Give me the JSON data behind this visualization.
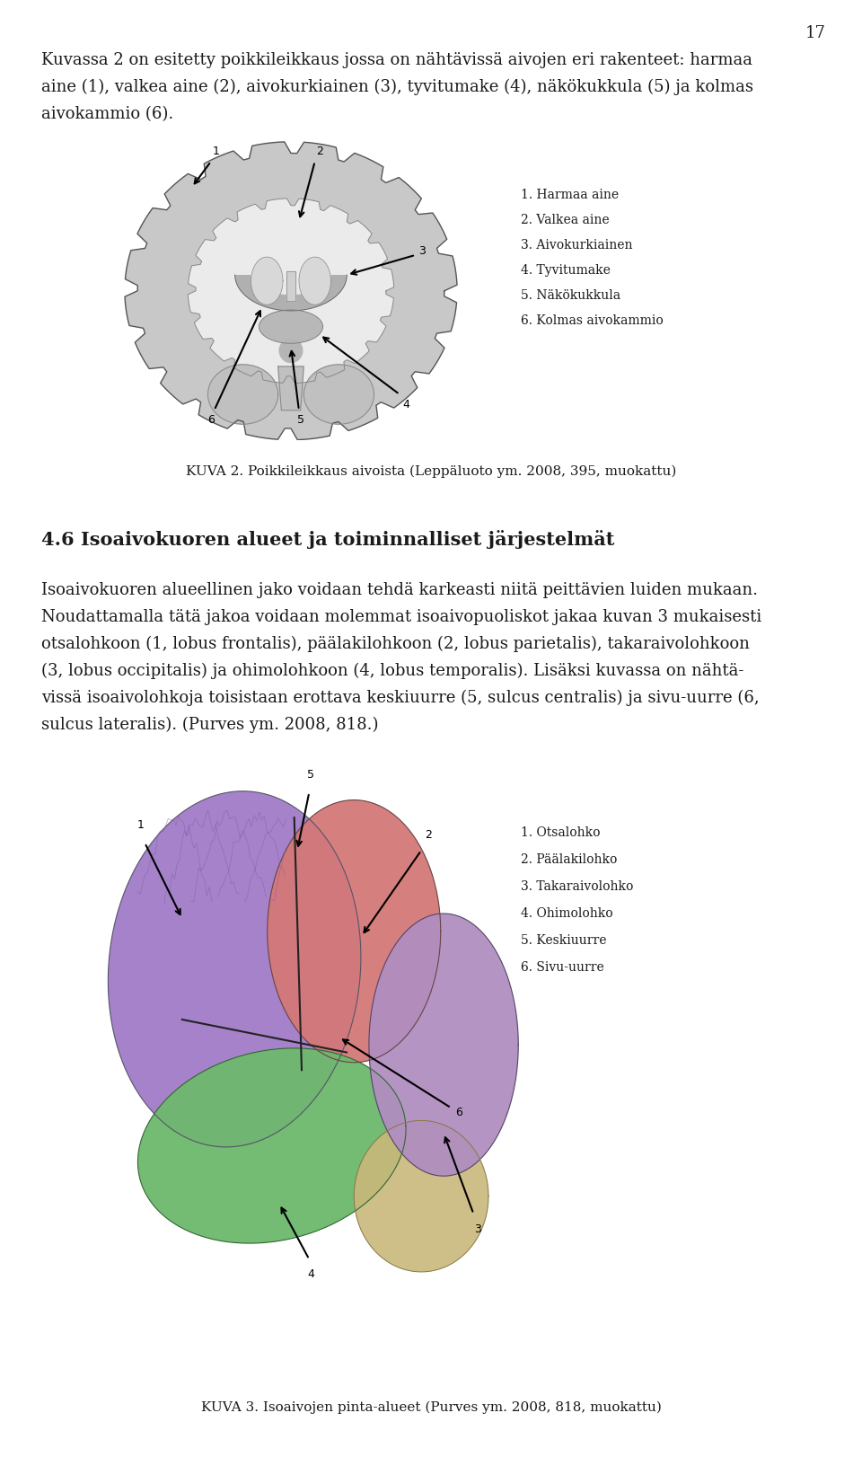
{
  "page_number": "17",
  "bg": "#ffffff",
  "tc": "#1a1a1a",
  "body_fs": 13,
  "caption_fs": 11,
  "legend_fs": 10,
  "heading_fs": 15,
  "p1_lines": [
    "Kuvassa 2 on esitetty poikkileikkaus jossa on nähtävissä aivojen eri rakenteet: harmaa",
    "aine (1), valkea aine (2), aivokurkiainen (3), tyvitumake (4), näkökukkula (5) ja kolmas",
    "aivokammio (6)."
  ],
  "kuva2_caption": "KUVA 2. Poikkileikkaus aivoista (Leppäluoto ym. 2008, 395, muokattu)",
  "heading": "4.6 Isoaivokuoren alueet ja toiminnalliset järjestelmät",
  "p2_lines": [
    "Isoaivokuoren alueellinen jako voidaan tehdä karkeasti niitä peittävien luiden mukaan.",
    "Noudattamalla tätä jakoa voidaan molemmat isoaivopuoliskot jakaa kuvan 3 mukaisesti",
    "otsalohkoon (1, lobus frontalis), päälakilohkoon (2, lobus parietalis), takaraivolohkoon",
    "(3, lobus occipitalis) ja ohimolohkoon (4, lobus temporalis). Lisäksi kuvassa on nähtä-",
    "vissä isoaivolohkoja toisistaan erottava keskiuurre (5, sulcus centralis) ja sivu-uurre (6,",
    "sulcus lateralis). (Purves ym. 2008, 818.)"
  ],
  "p2_italic_words": [
    "lobus frontalis",
    "lobus parietalis",
    "lobus occipitalis",
    "lobus temporalis",
    "sulcus centralis",
    "sulcus lateralis"
  ],
  "kuva3_caption": "KUVA 3. Isoaivojen pinta-alueet (Purves ym. 2008, 818, muokattu)",
  "brain1_legend": [
    "1. Harmaa aine",
    "2. Valkea aine",
    "3. Aivokurkiainen",
    "4. Tyvitumake",
    "5. Näkökukkula",
    "6. Kolmas aivokammio"
  ],
  "brain2_legend": [
    "1. Otsalohko",
    "2. Päälakilohko",
    "3. Takaraivolohko",
    "4. Ohimolohko",
    "5. Keskiuurre",
    "6. Sivu-uurre"
  ],
  "ml": 0.048,
  "lh": 0.0195
}
